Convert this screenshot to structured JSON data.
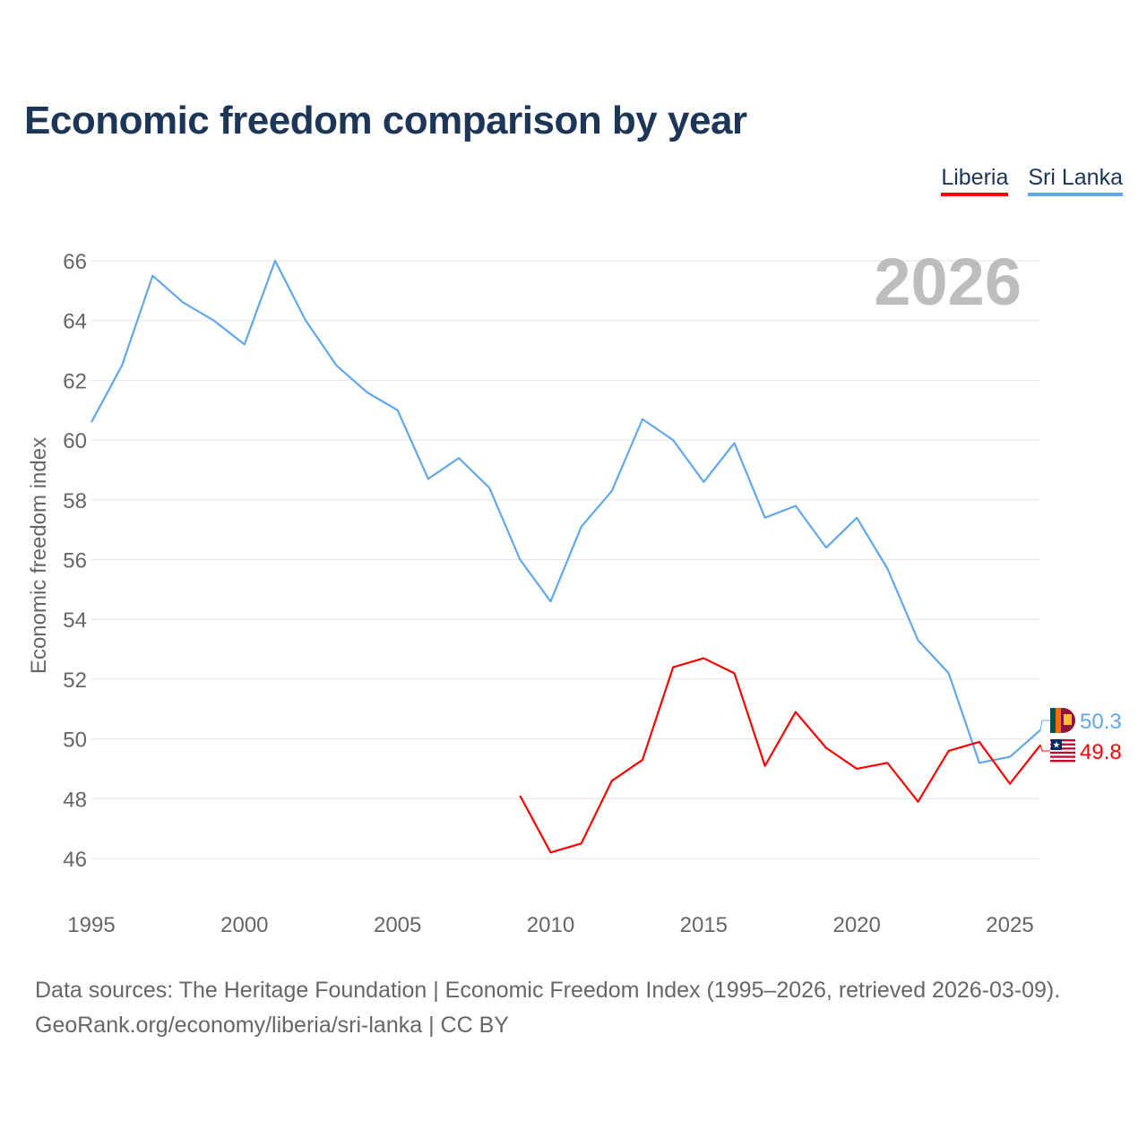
{
  "title": "Economic freedom comparison by year",
  "legend": [
    {
      "label": "Liberia",
      "color": "#ff0000"
    },
    {
      "label": "Sri Lanka",
      "color": "#62a8e8"
    }
  ],
  "footer": {
    "line1": "Data sources: The Heritage Foundation | Economic Freedom Index (1995–2026, retrieved 2026-03-09).",
    "line2": "GeoRank.org/economy/liberia/sri-lanka | CC BY"
  },
  "chart_data": {
    "type": "line",
    "title": "Economic freedom comparison by year",
    "ylabel": "Economic freedom index",
    "xlabel": "",
    "year_watermark": "2026",
    "xlim": [
      1995,
      2026
    ],
    "ylim": [
      44.8,
      66.3
    ],
    "xticks": [
      1995,
      2000,
      2005,
      2010,
      2015,
      2020,
      2025
    ],
    "yticks": [
      46,
      48,
      50,
      52,
      54,
      56,
      58,
      60,
      62,
      64,
      66
    ],
    "grid": true,
    "legend_position": "top-right",
    "series": [
      {
        "name": "Sri Lanka",
        "color": "#62a8e8",
        "end_label": "50.3",
        "x": [
          1995,
          1996,
          1997,
          1998,
          1999,
          2000,
          2001,
          2002,
          2003,
          2004,
          2005,
          2006,
          2007,
          2008,
          2009,
          2010,
          2011,
          2012,
          2013,
          2014,
          2015,
          2016,
          2017,
          2018,
          2019,
          2020,
          2021,
          2022,
          2023,
          2024,
          2025,
          2026
        ],
        "values": [
          60.6,
          62.5,
          65.5,
          64.6,
          64.0,
          63.2,
          66.0,
          64.0,
          62.5,
          61.6,
          61.0,
          58.7,
          59.4,
          58.4,
          56.0,
          54.6,
          57.1,
          58.3,
          60.7,
          60.0,
          58.6,
          59.9,
          57.4,
          57.8,
          56.4,
          57.4,
          55.7,
          53.3,
          52.2,
          49.2,
          49.4,
          50.3
        ]
      },
      {
        "name": "Liberia",
        "color": "#ff0000",
        "end_label": "49.8",
        "x": [
          2009,
          2010,
          2011,
          2012,
          2013,
          2014,
          2015,
          2016,
          2017,
          2018,
          2019,
          2020,
          2021,
          2022,
          2023,
          2024,
          2025,
          2026
        ],
        "values": [
          48.1,
          46.2,
          46.5,
          48.6,
          49.3,
          52.4,
          52.7,
          52.2,
          49.1,
          50.9,
          49.7,
          49.0,
          49.2,
          47.9,
          49.6,
          49.9,
          48.5,
          49.8
        ]
      }
    ]
  }
}
